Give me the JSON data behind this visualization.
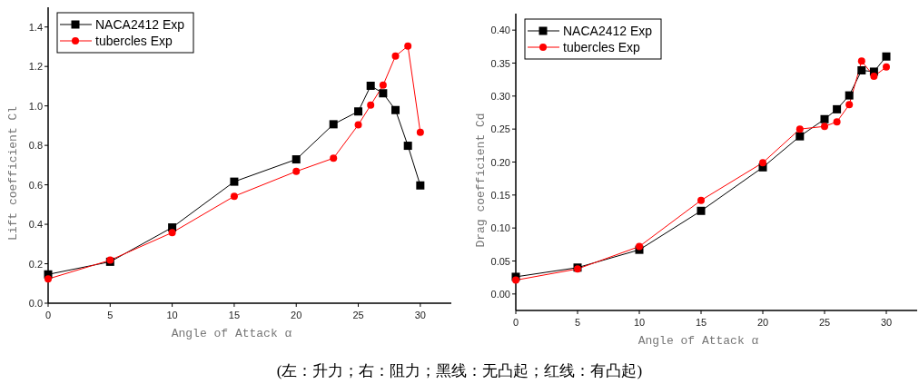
{
  "chart_data": [
    {
      "type": "line",
      "xlabel": "Angle of Attack α",
      "ylabel": "Lift coefficient Cl",
      "x": [
        0,
        5,
        10,
        15,
        20,
        23,
        25,
        26,
        27,
        28,
        29,
        30
      ],
      "series": [
        {
          "name": "NACA2412 Exp",
          "color": "#000000",
          "marker": "square",
          "values": [
            0.146,
            0.21,
            0.384,
            0.616,
            0.729,
            0.907,
            0.972,
            1.102,
            1.064,
            0.979,
            0.798,
            0.597
          ]
        },
        {
          "name": "tubercles Exp",
          "color": "#ff0000",
          "marker": "circle",
          "values": [
            0.123,
            0.218,
            0.358,
            0.542,
            0.668,
            0.735,
            0.904,
            1.004,
            1.105,
            1.253,
            1.303,
            0.866
          ]
        }
      ],
      "xlim": [
        0,
        32.5
      ],
      "ylim": [
        0,
        1.5
      ],
      "xticks": [
        0,
        5,
        10,
        15,
        20,
        25,
        30
      ],
      "yticks": [
        {
          "value": 0,
          "label": "0.0"
        },
        0.2,
        0.4,
        0.6,
        0.8,
        {
          "value": 1,
          "label": "1.0"
        },
        1.2,
        1.4
      ],
      "legend": "top left",
      "line_style": "solid",
      "annotations": [
        "(左：升力；右：阻力；黑线：无凸起；红线：有凸起)"
      ]
    },
    {
      "type": "line",
      "xlabel": "Angle of Attack α",
      "ylabel": "Drag coefficient Cd",
      "x": [
        0,
        5,
        10,
        15,
        20,
        23,
        25,
        26,
        27,
        28,
        29,
        30
      ],
      "series": [
        {
          "name": "NACA2412 Exp",
          "color": "#000000",
          "marker": "square",
          "values": [
            0.026,
            0.04,
            0.067,
            0.126,
            0.192,
            0.239,
            0.265,
            0.28,
            0.301,
            0.339,
            0.337,
            0.36
          ]
        },
        {
          "name": "tubercles Exp",
          "color": "#ff0000",
          "marker": "circle",
          "values": [
            0.021,
            0.038,
            0.072,
            0.142,
            0.199,
            0.25,
            0.254,
            0.261,
            0.287,
            0.353,
            0.33,
            0.344
          ]
        }
      ],
      "xlim": [
        0,
        32.5
      ],
      "ylim": [
        -0.025,
        0.425
      ],
      "xticks": [
        0,
        5,
        10,
        15,
        20,
        25,
        30
      ],
      "yticks": [
        {
          "value": 0,
          "label": "0.00"
        },
        0.05,
        {
          "value": 0.1,
          "label": "0.10"
        },
        0.15,
        {
          "value": 0.2,
          "label": "0.20"
        },
        0.25,
        {
          "value": 0.3,
          "label": "0.30"
        },
        0.35,
        {
          "value": 0.4,
          "label": "0.40"
        }
      ],
      "legend": "top left",
      "line_style": "solid"
    }
  ]
}
